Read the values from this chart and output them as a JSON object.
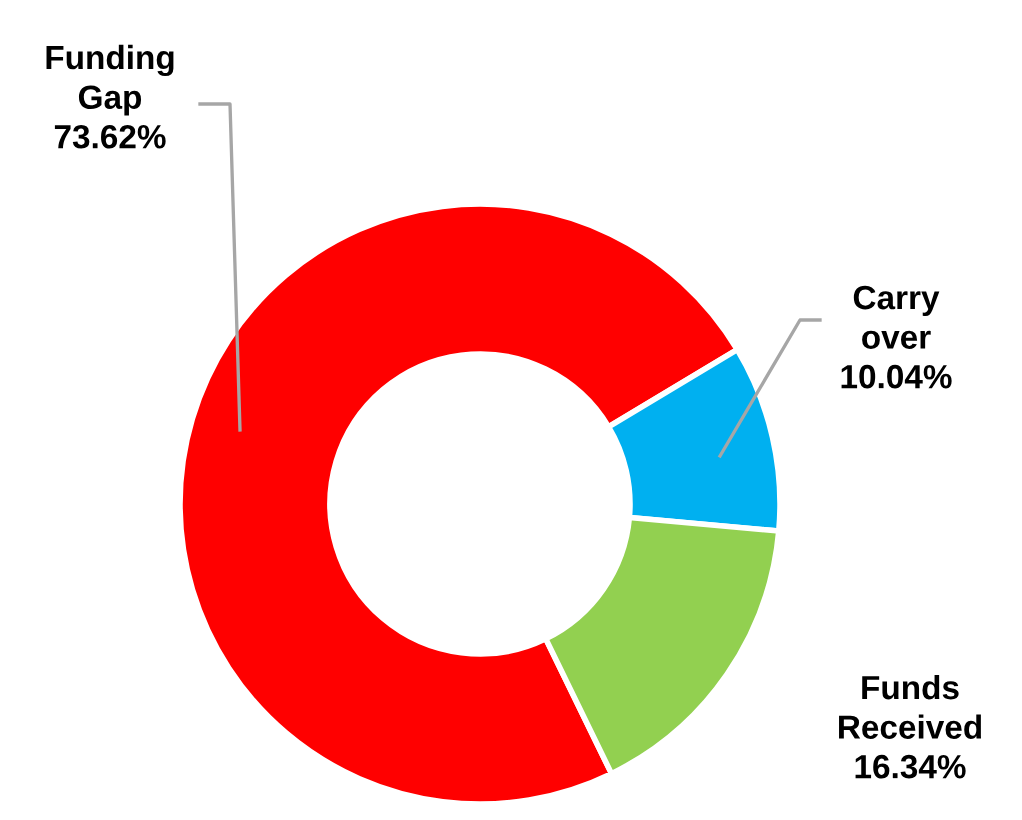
{
  "chart_data": {
    "type": "donut",
    "categories": [
      "Funding Gap",
      "Carry over",
      "Funds Received"
    ],
    "values": [
      73.62,
      10.04,
      16.34
    ],
    "colors": [
      "#ff0000",
      "#00b0f0",
      "#92d050"
    ],
    "value_labels": [
      "73.62%",
      "10.04%",
      "16.34%"
    ],
    "legend": false
  }
}
